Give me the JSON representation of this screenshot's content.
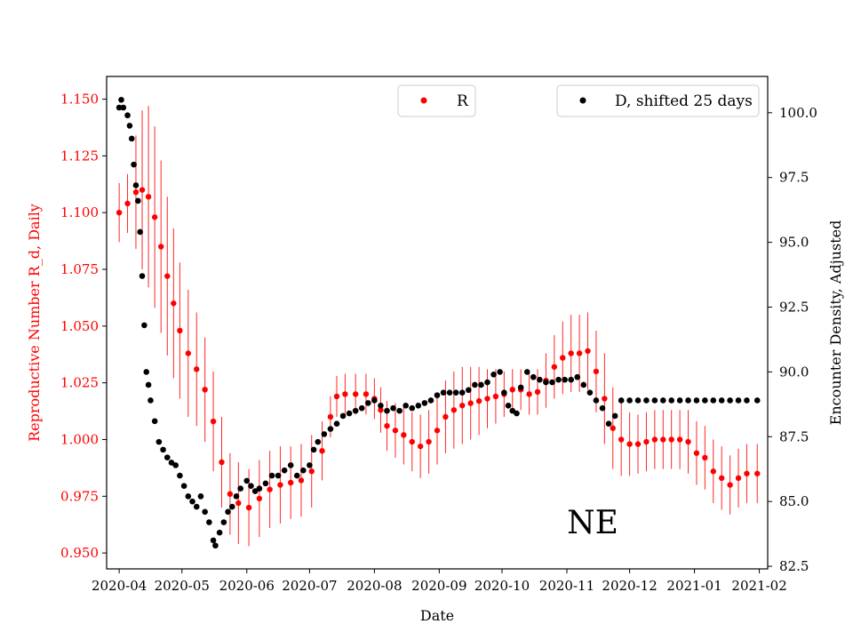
{
  "chart_data": {
    "type": "scatter",
    "xlabel": "Date",
    "ylabel_left": "Reproductive Number R_d, Daily",
    "ylabel_right": "Encounter Density, Adjusted",
    "annotation": "NE",
    "x_ticks": [
      "2020-04",
      "2020-05",
      "2020-06",
      "2020-07",
      "2020-08",
      "2020-09",
      "2020-10",
      "2020-11",
      "2020-12",
      "2021-01",
      "2021-02"
    ],
    "y_left_ticks": [
      "0.950",
      "0.975",
      "1.000",
      "1.025",
      "1.050",
      "1.075",
      "1.100",
      "1.125",
      "1.150"
    ],
    "y_right_ticks": [
      "82.5",
      "85.0",
      "87.5",
      "90.0",
      "92.5",
      "95.0",
      "97.5",
      "100.0"
    ],
    "xlim": [
      "2020-03-26",
      "2021-02-05"
    ],
    "y_left_lim": [
      0.943,
      1.16
    ],
    "y_right_lim": [
      82.4,
      101.4
    ],
    "grid": false,
    "colors": {
      "R": "#ff0000",
      "D": "#000000",
      "left_axis": "#ff0000",
      "right_axis": "#000000"
    },
    "legend_R": {
      "label": "R",
      "placement": "upper-center"
    },
    "legend_D": {
      "label": "D, shifted 25 days",
      "placement": "top-right"
    },
    "series": [
      {
        "name": "R",
        "axis": "left",
        "color": "#ff0000",
        "marker": "dot-with-errorbar",
        "points": [
          {
            "x": "2020-04-01",
            "y": 1.1,
            "err": 0.013
          },
          {
            "x": "2020-04-05",
            "y": 1.104,
            "err": 0.013
          },
          {
            "x": "2020-04-09",
            "y": 1.109,
            "err": 0.025
          },
          {
            "x": "2020-04-12",
            "y": 1.11,
            "err": 0.035
          },
          {
            "x": "2020-04-15",
            "y": 1.107,
            "err": 0.04
          },
          {
            "x": "2020-04-18",
            "y": 1.098,
            "err": 0.04
          },
          {
            "x": "2020-04-21",
            "y": 1.085,
            "err": 0.038
          },
          {
            "x": "2020-04-24",
            "y": 1.072,
            "err": 0.035
          },
          {
            "x": "2020-04-27",
            "y": 1.06,
            "err": 0.033
          },
          {
            "x": "2020-04-30",
            "y": 1.048,
            "err": 0.03
          },
          {
            "x": "2020-05-04",
            "y": 1.038,
            "err": 0.028
          },
          {
            "x": "2020-05-08",
            "y": 1.031,
            "err": 0.025
          },
          {
            "x": "2020-05-12",
            "y": 1.022,
            "err": 0.023
          },
          {
            "x": "2020-05-16",
            "y": 1.008,
            "err": 0.022
          },
          {
            "x": "2020-05-20",
            "y": 0.99,
            "err": 0.02
          },
          {
            "x": "2020-05-24",
            "y": 0.976,
            "err": 0.018
          },
          {
            "x": "2020-05-28",
            "y": 0.972,
            "err": 0.018
          },
          {
            "x": "2020-06-02",
            "y": 0.97,
            "err": 0.017
          },
          {
            "x": "2020-06-07",
            "y": 0.974,
            "err": 0.017
          },
          {
            "x": "2020-06-12",
            "y": 0.978,
            "err": 0.017
          },
          {
            "x": "2020-06-17",
            "y": 0.98,
            "err": 0.017
          },
          {
            "x": "2020-06-22",
            "y": 0.981,
            "err": 0.016
          },
          {
            "x": "2020-06-27",
            "y": 0.982,
            "err": 0.016
          },
          {
            "x": "2020-07-02",
            "y": 0.986,
            "err": 0.016
          },
          {
            "x": "2020-07-07",
            "y": 0.995,
            "err": 0.013
          },
          {
            "x": "2020-07-11",
            "y": 1.01,
            "err": 0.009
          },
          {
            "x": "2020-07-14",
            "y": 1.019,
            "err": 0.009
          },
          {
            "x": "2020-07-18",
            "y": 1.02,
            "err": 0.009
          },
          {
            "x": "2020-07-23",
            "y": 1.02,
            "err": 0.009
          },
          {
            "x": "2020-07-28",
            "y": 1.02,
            "err": 0.009
          },
          {
            "x": "2020-08-01",
            "y": 1.018,
            "err": 0.009
          },
          {
            "x": "2020-08-04",
            "y": 1.013,
            "err": 0.01
          },
          {
            "x": "2020-08-07",
            "y": 1.006,
            "err": 0.011
          },
          {
            "x": "2020-08-11",
            "y": 1.004,
            "err": 0.012
          },
          {
            "x": "2020-08-15",
            "y": 1.002,
            "err": 0.013
          },
          {
            "x": "2020-08-19",
            "y": 0.999,
            "err": 0.013
          },
          {
            "x": "2020-08-23",
            "y": 0.997,
            "err": 0.014
          },
          {
            "x": "2020-08-27",
            "y": 0.999,
            "err": 0.014
          },
          {
            "x": "2020-08-31",
            "y": 1.004,
            "err": 0.015
          },
          {
            "x": "2020-09-04",
            "y": 1.01,
            "err": 0.016
          },
          {
            "x": "2020-09-08",
            "y": 1.013,
            "err": 0.017
          },
          {
            "x": "2020-09-12",
            "y": 1.015,
            "err": 0.017
          },
          {
            "x": "2020-09-16",
            "y": 1.016,
            "err": 0.016
          },
          {
            "x": "2020-09-20",
            "y": 1.017,
            "err": 0.015
          },
          {
            "x": "2020-09-24",
            "y": 1.018,
            "err": 0.013
          },
          {
            "x": "2020-09-28",
            "y": 1.019,
            "err": 0.012
          },
          {
            "x": "2020-10-02",
            "y": 1.02,
            "err": 0.01
          },
          {
            "x": "2020-10-06",
            "y": 1.022,
            "err": 0.009
          },
          {
            "x": "2020-10-10",
            "y": 1.022,
            "err": 0.009
          },
          {
            "x": "2020-10-14",
            "y": 1.02,
            "err": 0.009
          },
          {
            "x": "2020-10-18",
            "y": 1.021,
            "err": 0.01
          },
          {
            "x": "2020-10-22",
            "y": 1.026,
            "err": 0.012
          },
          {
            "x": "2020-10-26",
            "y": 1.032,
            "err": 0.014
          },
          {
            "x": "2020-10-30",
            "y": 1.036,
            "err": 0.016
          },
          {
            "x": "2020-11-03",
            "y": 1.038,
            "err": 0.017
          },
          {
            "x": "2020-11-07",
            "y": 1.038,
            "err": 0.017
          },
          {
            "x": "2020-11-11",
            "y": 1.039,
            "err": 0.017
          },
          {
            "x": "2020-11-15",
            "y": 1.03,
            "err": 0.018
          },
          {
            "x": "2020-11-19",
            "y": 1.018,
            "err": 0.02
          },
          {
            "x": "2020-11-23",
            "y": 1.005,
            "err": 0.018
          },
          {
            "x": "2020-11-27",
            "y": 1.0,
            "err": 0.016
          },
          {
            "x": "2020-12-01",
            "y": 0.998,
            "err": 0.014
          },
          {
            "x": "2020-12-05",
            "y": 0.998,
            "err": 0.013
          },
          {
            "x": "2020-12-09",
            "y": 0.999,
            "err": 0.013
          },
          {
            "x": "2020-12-13",
            "y": 1.0,
            "err": 0.013
          },
          {
            "x": "2020-12-17",
            "y": 1.0,
            "err": 0.013
          },
          {
            "x": "2020-12-21",
            "y": 1.0,
            "err": 0.013
          },
          {
            "x": "2020-12-25",
            "y": 1.0,
            "err": 0.013
          },
          {
            "x": "2020-12-29",
            "y": 0.999,
            "err": 0.014
          },
          {
            "x": "2021-01-02",
            "y": 0.994,
            "err": 0.014
          },
          {
            "x": "2021-01-06",
            "y": 0.992,
            "err": 0.014
          },
          {
            "x": "2021-01-10",
            "y": 0.986,
            "err": 0.014
          },
          {
            "x": "2021-01-14",
            "y": 0.983,
            "err": 0.014
          },
          {
            "x": "2021-01-18",
            "y": 0.98,
            "err": 0.013
          },
          {
            "x": "2021-01-22",
            "y": 0.983,
            "err": 0.013
          },
          {
            "x": "2021-01-26",
            "y": 0.985,
            "err": 0.013
          },
          {
            "x": "2021-01-31",
            "y": 0.985,
            "err": 0.013
          }
        ]
      },
      {
        "name": "D, shifted 25 days",
        "axis": "right",
        "color": "#000000",
        "marker": "dot",
        "points": [
          {
            "x": "2020-04-01",
            "y": 100.2
          },
          {
            "x": "2020-04-02",
            "y": 100.5
          },
          {
            "x": "2020-04-03",
            "y": 100.2
          },
          {
            "x": "2020-04-05",
            "y": 99.9
          },
          {
            "x": "2020-04-06",
            "y": 99.5
          },
          {
            "x": "2020-04-07",
            "y": 99.0
          },
          {
            "x": "2020-04-08",
            "y": 98.0
          },
          {
            "x": "2020-04-09",
            "y": 97.2
          },
          {
            "x": "2020-04-10",
            "y": 96.6
          },
          {
            "x": "2020-04-11",
            "y": 95.4
          },
          {
            "x": "2020-04-12",
            "y": 93.7
          },
          {
            "x": "2020-04-13",
            "y": 91.8
          },
          {
            "x": "2020-04-14",
            "y": 90.0
          },
          {
            "x": "2020-04-15",
            "y": 89.5
          },
          {
            "x": "2020-04-16",
            "y": 88.9
          },
          {
            "x": "2020-04-18",
            "y": 88.1
          },
          {
            "x": "2020-04-20",
            "y": 87.3
          },
          {
            "x": "2020-04-22",
            "y": 87.0
          },
          {
            "x": "2020-04-24",
            "y": 86.7
          },
          {
            "x": "2020-04-26",
            "y": 86.5
          },
          {
            "x": "2020-04-28",
            "y": 86.4
          },
          {
            "x": "2020-04-30",
            "y": 86.0
          },
          {
            "x": "2020-05-02",
            "y": 85.6
          },
          {
            "x": "2020-05-04",
            "y": 85.2
          },
          {
            "x": "2020-05-06",
            "y": 85.0
          },
          {
            "x": "2020-05-08",
            "y": 84.8
          },
          {
            "x": "2020-05-10",
            "y": 85.2
          },
          {
            "x": "2020-05-12",
            "y": 84.6
          },
          {
            "x": "2020-05-14",
            "y": 84.2
          },
          {
            "x": "2020-05-16",
            "y": 83.5
          },
          {
            "x": "2020-05-17",
            "y": 83.3
          },
          {
            "x": "2020-05-19",
            "y": 83.8
          },
          {
            "x": "2020-05-21",
            "y": 84.2
          },
          {
            "x": "2020-05-23",
            "y": 84.6
          },
          {
            "x": "2020-05-25",
            "y": 84.8
          },
          {
            "x": "2020-05-27",
            "y": 85.2
          },
          {
            "x": "2020-05-29",
            "y": 85.5
          },
          {
            "x": "2020-06-01",
            "y": 85.8
          },
          {
            "x": "2020-06-03",
            "y": 85.6
          },
          {
            "x": "2020-06-05",
            "y": 85.4
          },
          {
            "x": "2020-06-07",
            "y": 85.5
          },
          {
            "x": "2020-06-10",
            "y": 85.7
          },
          {
            "x": "2020-06-13",
            "y": 86.0
          },
          {
            "x": "2020-06-16",
            "y": 86.0
          },
          {
            "x": "2020-06-19",
            "y": 86.2
          },
          {
            "x": "2020-06-22",
            "y": 86.4
          },
          {
            "x": "2020-06-25",
            "y": 86.0
          },
          {
            "x": "2020-06-28",
            "y": 86.2
          },
          {
            "x": "2020-07-01",
            "y": 86.4
          },
          {
            "x": "2020-07-03",
            "y": 87.0
          },
          {
            "x": "2020-07-05",
            "y": 87.3
          },
          {
            "x": "2020-07-08",
            "y": 87.6
          },
          {
            "x": "2020-07-11",
            "y": 87.8
          },
          {
            "x": "2020-07-14",
            "y": 88.0
          },
          {
            "x": "2020-07-17",
            "y": 88.3
          },
          {
            "x": "2020-07-20",
            "y": 88.4
          },
          {
            "x": "2020-07-23",
            "y": 88.5
          },
          {
            "x": "2020-07-26",
            "y": 88.6
          },
          {
            "x": "2020-07-29",
            "y": 88.8
          },
          {
            "x": "2020-08-01",
            "y": 88.9
          },
          {
            "x": "2020-08-04",
            "y": 88.7
          },
          {
            "x": "2020-08-07",
            "y": 88.5
          },
          {
            "x": "2020-08-10",
            "y": 88.6
          },
          {
            "x": "2020-08-13",
            "y": 88.5
          },
          {
            "x": "2020-08-16",
            "y": 88.7
          },
          {
            "x": "2020-08-19",
            "y": 88.6
          },
          {
            "x": "2020-08-22",
            "y": 88.7
          },
          {
            "x": "2020-08-25",
            "y": 88.8
          },
          {
            "x": "2020-08-28",
            "y": 88.9
          },
          {
            "x": "2020-08-31",
            "y": 89.1
          },
          {
            "x": "2020-09-03",
            "y": 89.2
          },
          {
            "x": "2020-09-06",
            "y": 89.2
          },
          {
            "x": "2020-09-09",
            "y": 89.2
          },
          {
            "x": "2020-09-12",
            "y": 89.2
          },
          {
            "x": "2020-09-15",
            "y": 89.3
          },
          {
            "x": "2020-09-18",
            "y": 89.5
          },
          {
            "x": "2020-09-21",
            "y": 89.5
          },
          {
            "x": "2020-09-24",
            "y": 89.6
          },
          {
            "x": "2020-09-27",
            "y": 89.9
          },
          {
            "x": "2020-09-30",
            "y": 90.0
          },
          {
            "x": "2020-10-02",
            "y": 89.2
          },
          {
            "x": "2020-10-04",
            "y": 88.7
          },
          {
            "x": "2020-10-06",
            "y": 88.5
          },
          {
            "x": "2020-10-08",
            "y": 88.4
          },
          {
            "x": "2020-10-10",
            "y": 89.4
          },
          {
            "x": "2020-10-13",
            "y": 90.0
          },
          {
            "x": "2020-10-16",
            "y": 89.8
          },
          {
            "x": "2020-10-19",
            "y": 89.7
          },
          {
            "x": "2020-10-22",
            "y": 89.6
          },
          {
            "x": "2020-10-25",
            "y": 89.6
          },
          {
            "x": "2020-10-28",
            "y": 89.7
          },
          {
            "x": "2020-10-31",
            "y": 89.7
          },
          {
            "x": "2020-11-03",
            "y": 89.7
          },
          {
            "x": "2020-11-06",
            "y": 89.8
          },
          {
            "x": "2020-11-09",
            "y": 89.5
          },
          {
            "x": "2020-11-12",
            "y": 89.2
          },
          {
            "x": "2020-11-15",
            "y": 88.9
          },
          {
            "x": "2020-11-18",
            "y": 88.6
          },
          {
            "x": "2020-11-21",
            "y": 88.0
          },
          {
            "x": "2020-11-24",
            "y": 88.3
          },
          {
            "x": "2020-11-27",
            "y": 88.9
          },
          {
            "x": "2020-12-01",
            "y": 88.9
          },
          {
            "x": "2020-12-05",
            "y": 88.9
          },
          {
            "x": "2020-12-09",
            "y": 88.9
          },
          {
            "x": "2020-12-13",
            "y": 88.9
          },
          {
            "x": "2020-12-17",
            "y": 88.9
          },
          {
            "x": "2020-12-21",
            "y": 88.9
          },
          {
            "x": "2020-12-25",
            "y": 88.9
          },
          {
            "x": "2020-12-29",
            "y": 88.9
          },
          {
            "x": "2021-01-02",
            "y": 88.9
          },
          {
            "x": "2021-01-06",
            "y": 88.9
          },
          {
            "x": "2021-01-10",
            "y": 88.9
          },
          {
            "x": "2021-01-14",
            "y": 88.9
          },
          {
            "x": "2021-01-18",
            "y": 88.9
          },
          {
            "x": "2021-01-22",
            "y": 88.9
          },
          {
            "x": "2021-01-26",
            "y": 88.9
          },
          {
            "x": "2021-01-31",
            "y": 88.9
          }
        ]
      }
    ]
  }
}
